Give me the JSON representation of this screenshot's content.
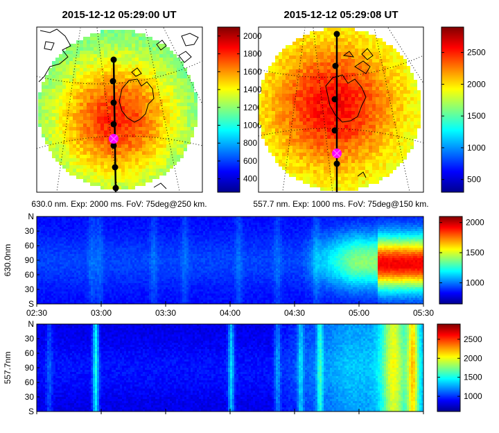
{
  "chart_data": [
    {
      "type": "heatmap",
      "name": "all-sky image 630.0 nm",
      "title": "2015-12-12 05:29:00 UT",
      "caption": "630.0 nm. Exp: 2000 ms. FoV: 75deg@250 km.",
      "colorbar": {
        "min": 250,
        "max": 2100,
        "ticks": [
          400,
          600,
          800,
          1000,
          1200,
          1400,
          1600,
          1800,
          2000
        ]
      },
      "track_points": 7
    },
    {
      "type": "heatmap",
      "name": "all-sky image 557.7 nm",
      "title": "2015-12-12 05:29:08 UT",
      "caption": "557.7 nm. Exp: 1000 ms. FoV: 75deg@150 km.",
      "colorbar": {
        "min": 300,
        "max": 2900,
        "ticks": [
          500,
          1000,
          1500,
          2000,
          2500
        ]
      },
      "track_points": 7
    },
    {
      "type": "heatmap",
      "name": "keogram 630.0 nm",
      "ylabel": "630.0nm",
      "ytick_labels": [
        "N",
        "30",
        "60",
        "90",
        "60",
        "30",
        "S"
      ],
      "xtick_labels": [
        "02:30",
        "03:00",
        "03:30",
        "04:00",
        "04:30",
        "05:00",
        "05:30"
      ],
      "colorbar": {
        "min": 650,
        "max": 2100,
        "ticks": [
          1000,
          1500,
          2000
        ]
      }
    },
    {
      "type": "heatmap",
      "name": "keogram 557.7 nm",
      "ylabel": "557.7nm",
      "ytick_labels": [
        "N",
        "30",
        "60",
        "90",
        "60",
        "30",
        "S"
      ],
      "colorbar": {
        "min": 600,
        "max": 2900,
        "ticks": [
          1000,
          1500,
          2000,
          2500
        ]
      }
    }
  ]
}
